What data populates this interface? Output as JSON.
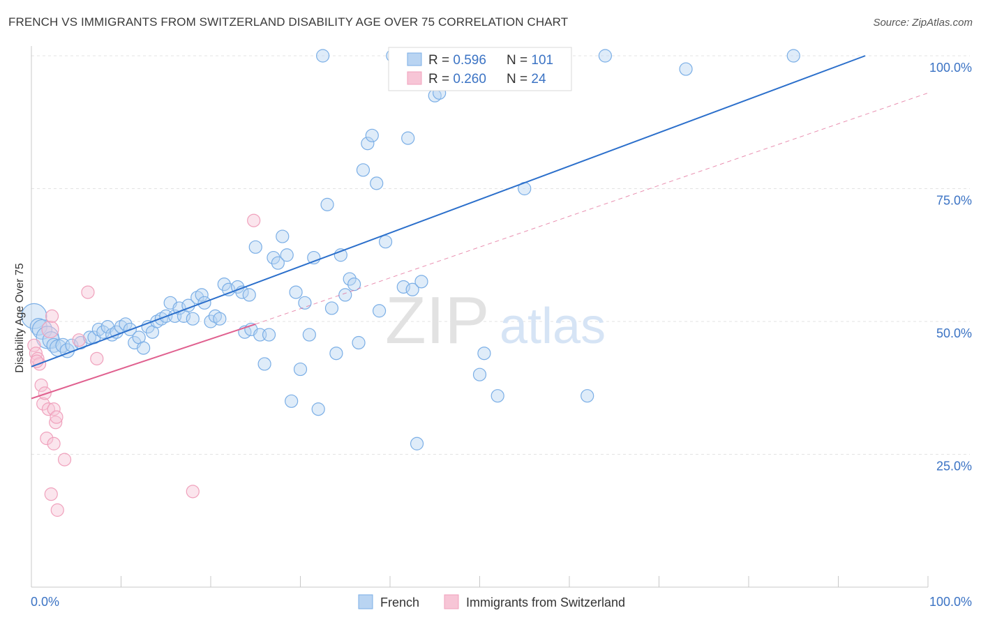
{
  "title": "FRENCH VS IMMIGRANTS FROM SWITZERLAND DISABILITY AGE OVER 75 CORRELATION CHART",
  "source": "Source: ZipAtlas.com",
  "watermark": {
    "zip": "ZIP",
    "atlas": "atlas"
  },
  "chart_data": {
    "type": "scatter",
    "ylabel": "Disability Age Over 75",
    "x_tick_labels": [
      "0.0%",
      "100.0%"
    ],
    "y_tick_labels": [
      {
        "value": 100,
        "label": "100.0%"
      },
      {
        "value": 75,
        "label": "75.0%"
      },
      {
        "value": 50,
        "label": "50.0%"
      },
      {
        "value": 25,
        "label": "25.0%"
      }
    ],
    "xlim": [
      0,
      100
    ],
    "ylim": [
      0,
      100
    ],
    "grid": true,
    "legend_position": "top-center",
    "stats": [
      {
        "r_label": "R = ",
        "r": "0.596",
        "n_label": "N = ",
        "n": "101",
        "color": "#7aaee6"
      },
      {
        "r_label": "R = ",
        "r": "0.260",
        "n_label": "N = ",
        "n": " 24",
        "color": "#f0a1bc"
      }
    ],
    "series": [
      {
        "name": "French",
        "color": "#7aaee6",
        "fill": "#b9d4f2",
        "trend": {
          "x": [
            0,
            93
          ],
          "y": [
            41.5,
            100
          ],
          "color": "#2b6fcb",
          "dashed": false
        },
        "points": [
          [
            0.3,
            51,
            18
          ],
          [
            0.8,
            49,
            12
          ],
          [
            1.2,
            48.5,
            14
          ],
          [
            1.8,
            47,
            16
          ],
          [
            2.2,
            46.5,
            12
          ],
          [
            2.5,
            45.5,
            10
          ],
          [
            3,
            45,
            12
          ],
          [
            3.5,
            45.5,
            10
          ],
          [
            4,
            44.5,
            10
          ],
          [
            4.5,
            45.5,
            9
          ],
          [
            5.5,
            46,
            9
          ],
          [
            6.5,
            47,
            9
          ],
          [
            7,
            47,
            9
          ],
          [
            7.5,
            48.5,
            9
          ],
          [
            8,
            48,
            9
          ],
          [
            8.5,
            49,
            9
          ],
          [
            9,
            47.5,
            9
          ],
          [
            9.5,
            48,
            9
          ],
          [
            10,
            49,
            9
          ],
          [
            10.5,
            49.5,
            9
          ],
          [
            11,
            48.5,
            9
          ],
          [
            11.5,
            46,
            9
          ],
          [
            12,
            47,
            9
          ],
          [
            12.5,
            45,
            9
          ],
          [
            13,
            49,
            9
          ],
          [
            13.5,
            48,
            9
          ],
          [
            14,
            50,
            9
          ],
          [
            14.5,
            50.5,
            9
          ],
          [
            15,
            51,
            9
          ],
          [
            15.5,
            53.5,
            9
          ],
          [
            16,
            51,
            9
          ],
          [
            16.5,
            52.5,
            9
          ],
          [
            17,
            51,
            9
          ],
          [
            17.5,
            53,
            9
          ],
          [
            18,
            50.5,
            9
          ],
          [
            18.5,
            54.5,
            9
          ],
          [
            19,
            55,
            9
          ],
          [
            19.3,
            53.5,
            9
          ],
          [
            20,
            50,
            9
          ],
          [
            20.5,
            51,
            9
          ],
          [
            21,
            50.5,
            9
          ],
          [
            21.5,
            57,
            9
          ],
          [
            22,
            56,
            9
          ],
          [
            23,
            56.5,
            9
          ],
          [
            23.5,
            55.5,
            9
          ],
          [
            24.3,
            55,
            9
          ],
          [
            23.8,
            48,
            9
          ],
          [
            24.5,
            48.5,
            9
          ],
          [
            25,
            64,
            9
          ],
          [
            25.5,
            47.5,
            9
          ],
          [
            26,
            42,
            9
          ],
          [
            26.5,
            47.5,
            9
          ],
          [
            27,
            62,
            9
          ],
          [
            27.5,
            61,
            9
          ],
          [
            28,
            66,
            9
          ],
          [
            28.5,
            62.5,
            9
          ],
          [
            29,
            35,
            9
          ],
          [
            29.5,
            55.5,
            9
          ],
          [
            30,
            41,
            9
          ],
          [
            30.5,
            53.5,
            9
          ],
          [
            31,
            47.5,
            9
          ],
          [
            31.5,
            62,
            9
          ],
          [
            32,
            33.5,
            9
          ],
          [
            32.5,
            100,
            9
          ],
          [
            33,
            72,
            9
          ],
          [
            33.5,
            52.5,
            9
          ],
          [
            34,
            44,
            9
          ],
          [
            34.5,
            62.5,
            9
          ],
          [
            35,
            55,
            9
          ],
          [
            35.5,
            58,
            9
          ],
          [
            36,
            57,
            9
          ],
          [
            36.5,
            46,
            9
          ],
          [
            37,
            78.5,
            9
          ],
          [
            37.5,
            83.5,
            9
          ],
          [
            38,
            85,
            9
          ],
          [
            38.5,
            76,
            9
          ],
          [
            38.8,
            52,
            9
          ],
          [
            39.5,
            65,
            9
          ],
          [
            40.3,
            100,
            9
          ],
          [
            41.5,
            56.5,
            9
          ],
          [
            42,
            84.5,
            9
          ],
          [
            42.5,
            56,
            9
          ],
          [
            43,
            27,
            9
          ],
          [
            43.5,
            57.5,
            9
          ],
          [
            44,
            95,
            9
          ],
          [
            45,
            92.5,
            9
          ],
          [
            45.5,
            93,
            9
          ],
          [
            46,
            100,
            9
          ],
          [
            50,
            40,
            9
          ],
          [
            50.5,
            44,
            9
          ],
          [
            52,
            36,
            9
          ],
          [
            53.5,
            100,
            9
          ],
          [
            55,
            75,
            9
          ],
          [
            62,
            36,
            9
          ],
          [
            64,
            100,
            9
          ],
          [
            73,
            97.5,
            9
          ],
          [
            85,
            100,
            9
          ],
          [
            44.5,
            100,
            9
          ]
        ]
      },
      {
        "name": "Immigrants from Switzerland",
        "color": "#f0a1bc",
        "fill": "#f7c5d6",
        "trend": {
          "x": [
            0,
            25
          ],
          "y": [
            35.5,
            49.5
          ],
          "x_ext": [
            25,
            100
          ],
          "y_ext": [
            49.5,
            93
          ],
          "color": "#e0608f",
          "dashed": false
        },
        "points": [
          [
            0.3,
            45.5,
            9
          ],
          [
            0.5,
            44,
            9
          ],
          [
            0.7,
            43,
            9
          ],
          [
            0.9,
            42,
            9
          ],
          [
            1.1,
            38,
            9
          ],
          [
            1.3,
            34.5,
            9
          ],
          [
            1.5,
            36.5,
            9
          ],
          [
            1.7,
            28,
            9
          ],
          [
            1.9,
            33.5,
            9
          ],
          [
            2.1,
            48.5,
            12
          ],
          [
            2.2,
            17.5,
            9
          ],
          [
            2.3,
            51,
            9
          ],
          [
            2.5,
            27,
            9
          ],
          [
            2.5,
            33.5,
            9
          ],
          [
            2.7,
            31,
            9
          ],
          [
            2.8,
            32,
            9
          ],
          [
            2.9,
            14.5,
            9
          ],
          [
            3.7,
            24,
            9
          ],
          [
            5.3,
            46.5,
            9
          ],
          [
            6.3,
            55.5,
            9
          ],
          [
            7.3,
            43,
            9
          ],
          [
            18,
            18,
            9
          ],
          [
            24.8,
            69,
            9
          ],
          [
            0.6,
            42.5,
            9
          ]
        ]
      }
    ]
  }
}
